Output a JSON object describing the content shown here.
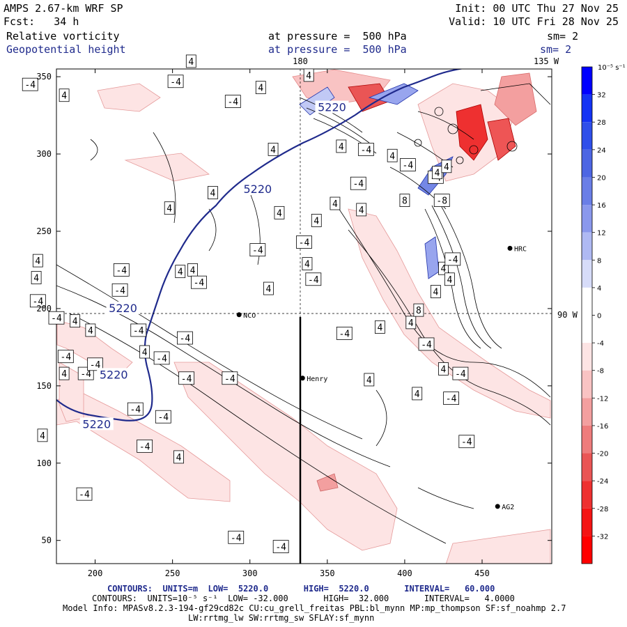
{
  "header": {
    "model": "AMPS 2.67-km WRF SP",
    "forecast": "Fcst:   34 h",
    "init": "Init: 00 UTC Thu 27 Nov 25",
    "valid": "Valid: 10 UTC Fri 28 Nov 25",
    "field1_name": "Relative vorticity",
    "field1_level": "at pressure =  500 hPa",
    "field1_smooth": "sm= 2",
    "field2_name": "Geopotential height",
    "field2_level": "at pressure =  500 hPa",
    "field2_smooth": "sm= 2"
  },
  "map": {
    "meridian_180": "180",
    "meridian_135w": "135 W",
    "parallel_90w": "90 W",
    "stations": [
      {
        "name": "NCO",
        "x": 293,
        "y": 196
      },
      {
        "name": "Henry",
        "x": 334,
        "y": 155
      },
      {
        "name": "HRC",
        "x": 468,
        "y": 239
      },
      {
        "name": "AG2",
        "x": 460,
        "y": 72
      }
    ],
    "x_ticks": [
      "200",
      "250",
      "300",
      "350",
      "400",
      "450"
    ],
    "y_ticks": [
      "350",
      "300",
      "250",
      "200",
      "150",
      "100",
      "50"
    ],
    "height_contour_label": "5220",
    "vort_label_pos": "4",
    "vort_label_neg": "-4",
    "vort_label_pos8": "8",
    "vort_label_neg8": "-8"
  },
  "colorbar": {
    "unit": "10⁻⁵ s⁻¹",
    "labels": [
      "32",
      "28",
      "24",
      "20",
      "16",
      "12",
      "8",
      "4",
      "0",
      "-4",
      "-8",
      "-12",
      "-16",
      "-20",
      "-24",
      "-28",
      "-32"
    ],
    "colors": [
      "#0000ff",
      "#1f3ff2",
      "#3a5ae6",
      "#5670e0",
      "#7487e6",
      "#98a5ee",
      "#c1c9f5",
      "#ffffff",
      "#ffffff",
      "#fde4e4",
      "#f9c3c3",
      "#f39f9f",
      "#ee7c7c",
      "#ea5555",
      "#ee3030",
      "#f41414",
      "#ff0000"
    ]
  },
  "footer": {
    "line1": "CONTOURS:  UNITS=m  LOW=  5220.0       HIGH=  5220.0       INTERVAL=   60.000",
    "line2": "CONTOURS:  UNITS=10⁻⁵ s⁻¹  LOW= -32.000       HIGH=  32.000       INTERVAL=   4.0000",
    "line3": "Model Info: MPASv8.2.3-194-gf29cd82c CU:cu_grell_freitas PBL:bl_mynn MP:mp_thompson SF:sf_noahmp 2.7",
    "line4": "LW:rrtmg_lw SW:rrtmg_sw SFLAY:sf_mynn"
  }
}
